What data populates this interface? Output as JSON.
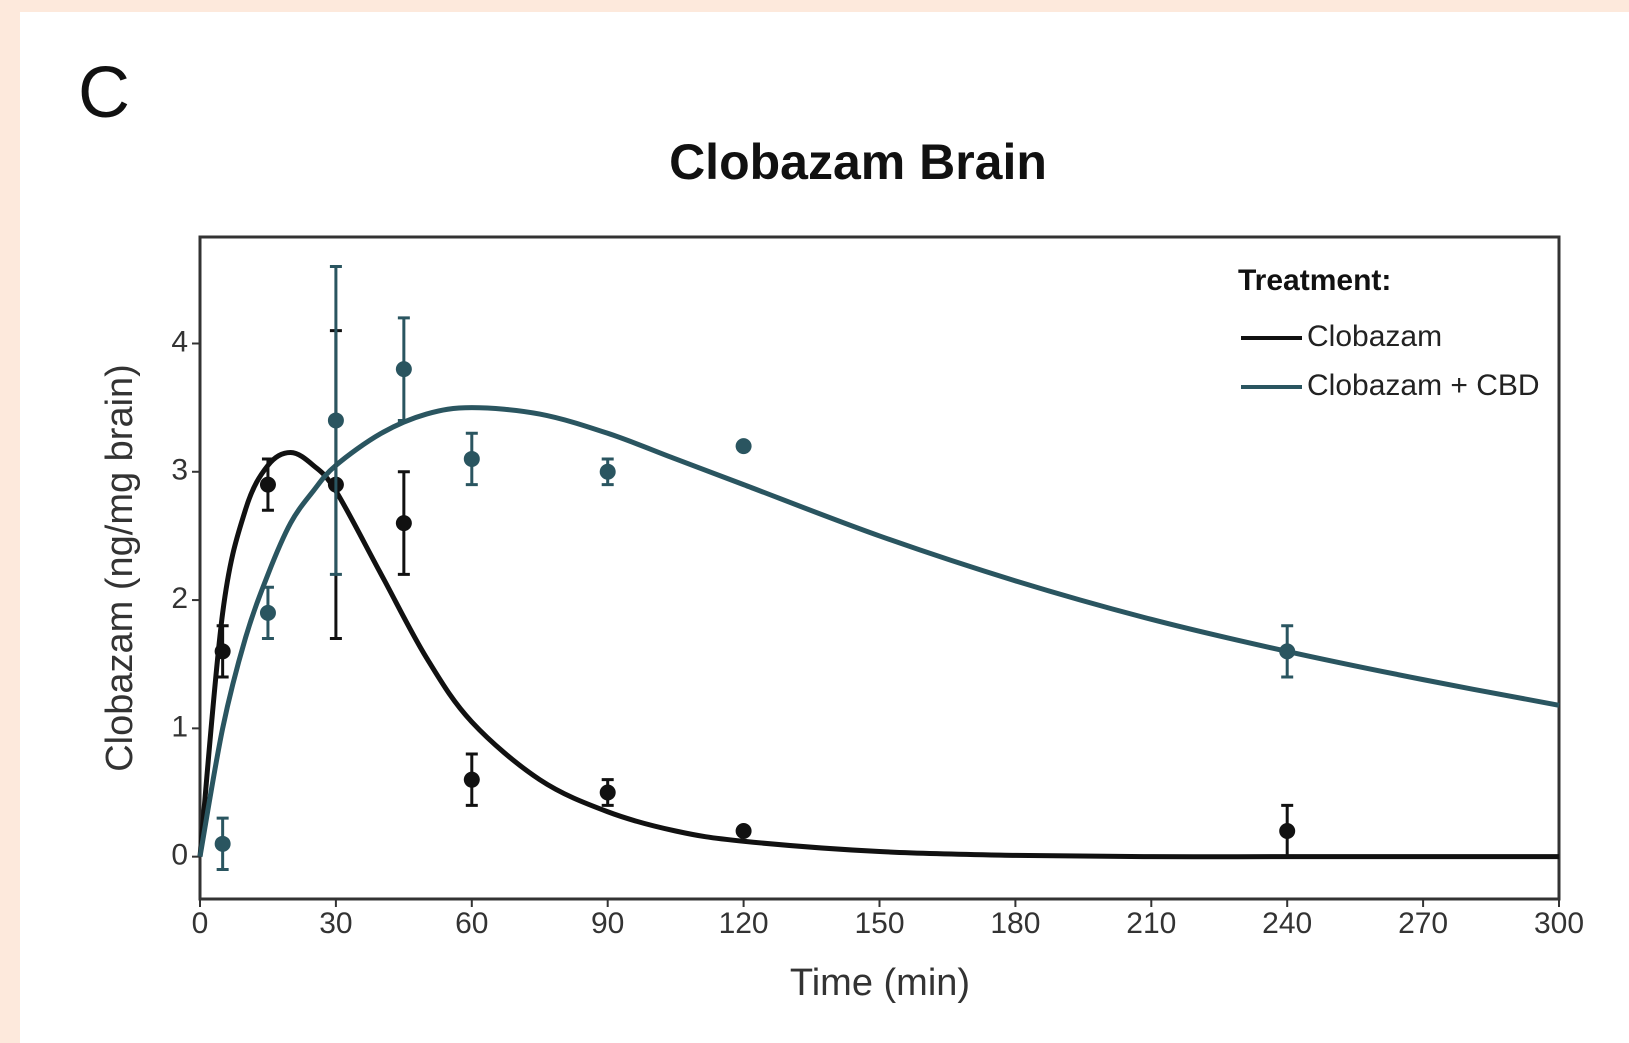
{
  "panel_label": "C",
  "chart_data": {
    "type": "scatter",
    "title": "Clobazam Brain",
    "x_label": "Time (min)",
    "y_label": "Clobazam (ng/mg brain)",
    "legend_title": "Treatment:",
    "legend": "top-right",
    "xlim": [
      0,
      300
    ],
    "ylim": [
      -0.33,
      4.83
    ],
    "xticks": [
      0,
      30,
      60,
      90,
      120,
      150,
      180,
      210,
      240,
      270,
      300
    ],
    "yticks": [
      0,
      1,
      2,
      3,
      4
    ],
    "x": [
      5,
      15,
      30,
      45,
      60,
      90,
      120,
      240
    ],
    "series": [
      {
        "name": "Clobazam",
        "color": "#111111",
        "values": [
          1.6,
          2.9,
          2.9,
          2.6,
          0.6,
          0.5,
          0.2,
          0.2
        ],
        "errors": [
          0.2,
          0.2,
          1.2,
          0.4,
          0.2,
          0.1,
          0,
          0.2
        ],
        "fit_x": [
          0,
          5,
          10,
          15,
          20,
          25,
          30,
          40,
          50,
          60,
          75,
          90,
          105,
          120,
          150,
          180,
          210,
          240,
          270,
          300
        ],
        "fit_values": [
          0,
          1.9,
          2.7,
          3.05,
          3.15,
          3.05,
          2.85,
          2.2,
          1.55,
          1.05,
          0.6,
          0.35,
          0.2,
          0.12,
          0.04,
          0.01,
          0,
          0,
          0,
          0
        ]
      },
      {
        "name": "Clobazam + CBD",
        "color": "#2a5560",
        "values": [
          0.1,
          1.9,
          3.4,
          3.8,
          3.1,
          3.0,
          3.2,
          1.6
        ],
        "errors": [
          0.2,
          0.2,
          1.2,
          0.4,
          0.2,
          0.1,
          0,
          0.2
        ],
        "fit_x": [
          0,
          5,
          10,
          15,
          20,
          25,
          30,
          40,
          50,
          60,
          75,
          90,
          105,
          120,
          150,
          180,
          210,
          240,
          270,
          300
        ],
        "fit_values": [
          0,
          1.0,
          1.7,
          2.2,
          2.6,
          2.85,
          3.05,
          3.3,
          3.45,
          3.5,
          3.45,
          3.3,
          3.1,
          2.9,
          2.5,
          2.15,
          1.85,
          1.6,
          1.38,
          1.18
        ]
      }
    ]
  }
}
